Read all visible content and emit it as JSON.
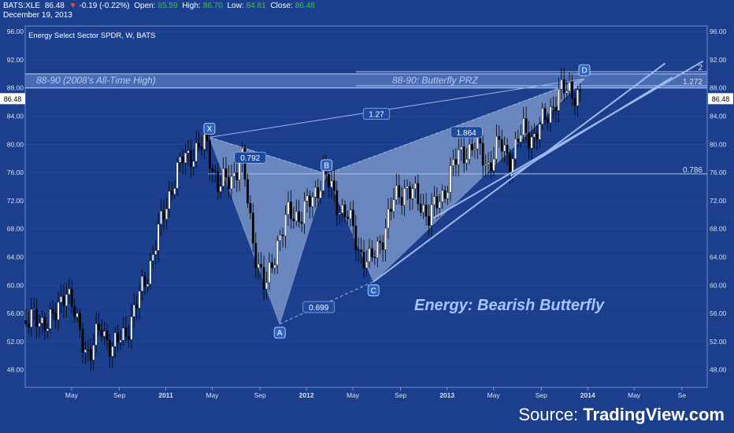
{
  "header": {
    "symbol": "BATS:XLE",
    "price": "86.48",
    "change": "-0.19 (-0.22%)",
    "open_label": "Open:",
    "open": "85.59",
    "high_label": "High:",
    "high": "86.70",
    "low_label": "Low:",
    "low": "84.81",
    "close_label": "Close:",
    "close": "86.48",
    "date": "December 19, 2013"
  },
  "colors": {
    "background": "#1b3f8c",
    "up": "#ffffff",
    "down": "#000000",
    "pattern_fill": "#a9c0e8",
    "accent_text": "#a8c4ff",
    "label_box": "#2d63c4"
  },
  "source_prefix": "Source: ",
  "source_brand": "TradingView.com",
  "chart_data": {
    "type": "candlestick",
    "title": "Energy Select Sector SPDR, W, BATS",
    "annotation": "Energy: Bearish Butterfly",
    "ylim": [
      45.5,
      96.8
    ],
    "y_ticks": [
      "96.00",
      "92.00",
      "88.00",
      "84.00",
      "80.00",
      "76.00",
      "72.00",
      "68.00",
      "64.00",
      "60.00",
      "56.00",
      "52.00",
      "48.00"
    ],
    "x_ticks": [
      "May",
      "Sep",
      "2011",
      "May",
      "Sep",
      "2012",
      "May",
      "Sep",
      "2013",
      "May",
      "Sep",
      "2014",
      "May",
      "Se"
    ],
    "last_price_label": "86.48",
    "zones": [
      {
        "label": "88-90 (2008's All-Time High)",
        "low": 88,
        "high": 90
      },
      {
        "label": "88-90: Butterfly PRZ",
        "low": 88,
        "high": 90
      }
    ],
    "pattern_points": [
      {
        "label": "X",
        "date": "2011-04",
        "price": 81.0
      },
      {
        "label": "A",
        "date": "2011-10",
        "price": 54.5
      },
      {
        "label": "B",
        "date": "2012-02",
        "price": 75.8
      },
      {
        "label": "C",
        "date": "2012-06",
        "price": 60.5
      },
      {
        "label": "D",
        "date": "2013-12",
        "price": 89.3
      }
    ],
    "ratios": [
      {
        "label": "0.792",
        "between": "XA-B"
      },
      {
        "label": "0.699",
        "between": "AB-C"
      },
      {
        "label": "1.864",
        "between": "BC-D"
      },
      {
        "label": "1.27",
        "between": "XA-D"
      }
    ],
    "fib_levels": [
      {
        "label": "2",
        "price": 90.3
      },
      {
        "label": "1.272",
        "price": 88.3
      },
      {
        "label": "0.786",
        "price": 75.8
      }
    ],
    "candles_approx": [
      {
        "date": "2010-03",
        "price": 55
      },
      {
        "date": "2010-04",
        "price": 60
      },
      {
        "date": "2010-05",
        "price": 54
      },
      {
        "date": "2010-06",
        "price": 50
      },
      {
        "date": "2010-07",
        "price": 54
      },
      {
        "date": "2010-08",
        "price": 51
      },
      {
        "date": "2010-09",
        "price": 53
      },
      {
        "date": "2010-10",
        "price": 57
      },
      {
        "date": "2010-11",
        "price": 62
      },
      {
        "date": "2010-12",
        "price": 68
      },
      {
        "date": "2011-01",
        "price": 74
      },
      {
        "date": "2011-02",
        "price": 78
      },
      {
        "date": "2011-03",
        "price": 79
      },
      {
        "date": "2011-04",
        "price": 80
      },
      {
        "date": "2011-05",
        "price": 74
      },
      {
        "date": "2011-06",
        "price": 75
      },
      {
        "date": "2011-07",
        "price": 78
      },
      {
        "date": "2011-08",
        "price": 66
      },
      {
        "date": "2011-09",
        "price": 59
      },
      {
        "date": "2011-10",
        "price": 66
      },
      {
        "date": "2011-11",
        "price": 70
      },
      {
        "date": "2011-12",
        "price": 70
      },
      {
        "date": "2012-01",
        "price": 72
      },
      {
        "date": "2012-02",
        "price": 76
      },
      {
        "date": "2012-03",
        "price": 72
      },
      {
        "date": "2012-04",
        "price": 70
      },
      {
        "date": "2012-05",
        "price": 65
      },
      {
        "date": "2012-06",
        "price": 63
      },
      {
        "date": "2012-07",
        "price": 67
      },
      {
        "date": "2012-08",
        "price": 72
      },
      {
        "date": "2012-09",
        "price": 74
      },
      {
        "date": "2012-10",
        "price": 72
      },
      {
        "date": "2012-11",
        "price": 70
      },
      {
        "date": "2012-12",
        "price": 72
      },
      {
        "date": "2013-01",
        "price": 77
      },
      {
        "date": "2013-02",
        "price": 79
      },
      {
        "date": "2013-03",
        "price": 80
      },
      {
        "date": "2013-04",
        "price": 77
      },
      {
        "date": "2013-05",
        "price": 80
      },
      {
        "date": "2013-06",
        "price": 78
      },
      {
        "date": "2013-07",
        "price": 82
      },
      {
        "date": "2013-08",
        "price": 81
      },
      {
        "date": "2013-09",
        "price": 84
      },
      {
        "date": "2013-10",
        "price": 87
      },
      {
        "date": "2013-11",
        "price": 88
      },
      {
        "date": "2013-12",
        "price": 86.48
      }
    ]
  }
}
